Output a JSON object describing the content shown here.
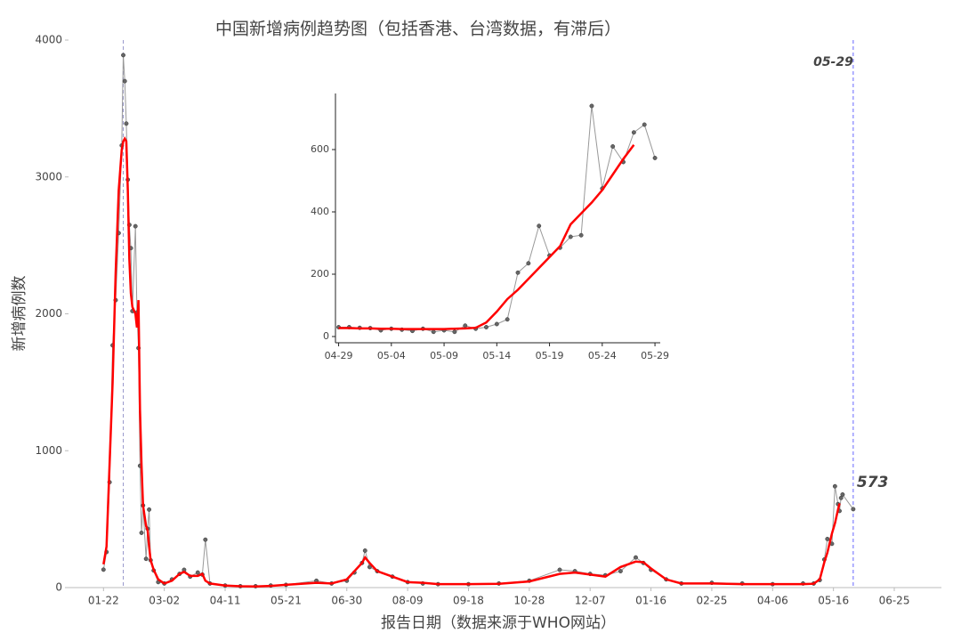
{
  "chart_data": [
    {
      "type": "line",
      "title": "中国新增病例趋势图（包括香港、台湾数据，有滞后）",
      "x_label": "报告日期（数据来源于WHO网站）",
      "y_label": "新增病例数",
      "x": [
        0,
        2,
        4,
        6,
        8,
        10,
        12,
        13,
        14,
        15,
        16,
        17,
        18,
        19,
        21,
        22,
        23,
        24,
        25,
        26,
        28,
        29,
        30,
        31,
        33,
        36,
        40,
        45,
        50,
        53,
        57,
        62,
        65,
        67,
        70,
        80,
        90,
        100,
        110,
        120,
        140,
        150,
        160,
        165,
        170,
        172,
        175,
        180,
        190,
        200,
        210,
        220,
        240,
        260,
        280,
        300,
        310,
        320,
        330,
        340,
        350,
        355,
        360,
        370,
        380,
        400,
        420,
        440,
        460,
        467,
        471,
        474,
        476,
        479,
        481,
        483,
        484,
        485,
        486,
        493
      ],
      "series": [
        {
          "color": "#999999",
          "markers": true,
          "values": [
            131,
            260,
            770,
            1770,
            2100,
            2590,
            3230,
            3890,
            3700,
            3390,
            2980,
            2650,
            2480,
            2020,
            2640,
            2010,
            1750,
            890,
            400,
            600,
            210,
            430,
            570,
            200,
            125,
            40,
            30,
            60,
            100,
            130,
            80,
            110,
            95,
            350,
            30,
            15,
            10,
            10,
            15,
            20,
            50,
            30,
            50,
            110,
            180,
            270,
            150,
            120,
            80,
            40,
            30,
            25,
            25,
            30,
            50,
            130,
            120,
            100,
            90,
            120,
            220,
            180,
            130,
            60,
            30,
            35,
            30,
            25,
            30,
            30,
            55,
            205,
            355,
            320,
            740,
            610,
            560,
            655,
            680,
            573
          ]
        },
        {
          "color": "#ff0000",
          "markers": false,
          "values": [
            170,
            300,
            900,
            1500,
            2300,
            2900,
            3200,
            3260,
            3280,
            3260,
            2900,
            2400,
            2150,
            2050,
            2000,
            1900,
            2100,
            1300,
            900,
            600,
            450,
            420,
            300,
            200,
            130,
            60,
            30,
            50,
            100,
            115,
            85,
            85,
            100,
            50,
            30,
            15,
            10,
            8,
            12,
            20,
            35,
            30,
            60,
            120,
            180,
            220,
            180,
            120,
            80,
            40,
            35,
            25,
            25,
            28,
            45,
            100,
            110,
            95,
            80,
            150,
            190,
            185,
            140,
            60,
            30,
            30,
            25,
            25,
            25,
            28,
            60,
            185,
            255,
            395,
            470,
            570,
            615,
            null,
            null,
            null
          ]
        }
      ],
      "xlim": [
        -23,
        551
      ],
      "ylim": [
        0,
        4000
      ],
      "xticks": [
        {
          "value": 0,
          "label": "01-22"
        },
        {
          "value": 40,
          "label": "03-02"
        },
        {
          "value": 80,
          "label": "04-11"
        },
        {
          "value": 120,
          "label": "05-21"
        },
        {
          "value": 160,
          "label": "06-30"
        },
        {
          "value": 200,
          "label": "08-09"
        },
        {
          "value": 240,
          "label": "09-18"
        },
        {
          "value": 280,
          "label": "10-28"
        },
        {
          "value": 320,
          "label": "12-07"
        },
        {
          "value": 360,
          "label": "01-16"
        },
        {
          "value": 400,
          "label": "02-25"
        },
        {
          "value": 440,
          "label": "04-06"
        },
        {
          "value": 480,
          "label": "05-16"
        },
        {
          "value": 520,
          "label": "06-25"
        }
      ],
      "yticks": [
        0,
        1000,
        2000,
        3000,
        4000
      ],
      "vlines": [
        13,
        493
      ],
      "annotations": [
        {
          "text": "05-29",
          "x": 493,
          "color": "#aaaaaa"
        },
        {
          "text": "573",
          "x": 493,
          "y": 573,
          "color": "#0000ff"
        }
      ]
    },
    {
      "type": "line",
      "x": [
        0,
        1,
        2,
        3,
        4,
        5,
        6,
        7,
        8,
        9,
        10,
        11,
        12,
        13,
        14,
        15,
        16,
        17,
        18,
        19,
        20,
        21,
        22,
        23,
        24,
        25,
        26,
        27,
        28,
        29,
        30
      ],
      "series": [
        {
          "color": "#999999",
          "markers": true,
          "values": [
            30,
            30,
            28,
            27,
            20,
            25,
            22,
            18,
            25,
            15,
            20,
            15,
            35,
            25,
            30,
            40,
            55,
            205,
            235,
            355,
            260,
            285,
            320,
            325,
            740,
            475,
            610,
            560,
            655,
            680,
            573
          ]
        },
        {
          "color": "#ff0000",
          "markers": false,
          "values": [
            27,
            27,
            26,
            26,
            25,
            25,
            24,
            24,
            24,
            24,
            24,
            25,
            26,
            28,
            45,
            80,
            120,
            150,
            185,
            220,
            255,
            290,
            360,
            395,
            430,
            470,
            520,
            570,
            615,
            null,
            null
          ]
        }
      ],
      "xlim": [
        -0.3,
        30.5
      ],
      "ylim": [
        -20,
        780
      ],
      "xticks": [
        {
          "value": 0,
          "label": "04-29"
        },
        {
          "value": 5,
          "label": "05-04"
        },
        {
          "value": 10,
          "label": "05-09"
        },
        {
          "value": 15,
          "label": "05-14"
        },
        {
          "value": 20,
          "label": "05-19"
        },
        {
          "value": 25,
          "label": "05-24"
        },
        {
          "value": 30,
          "label": "05-29"
        }
      ],
      "yticks": [
        0,
        200,
        400,
        600
      ]
    }
  ]
}
